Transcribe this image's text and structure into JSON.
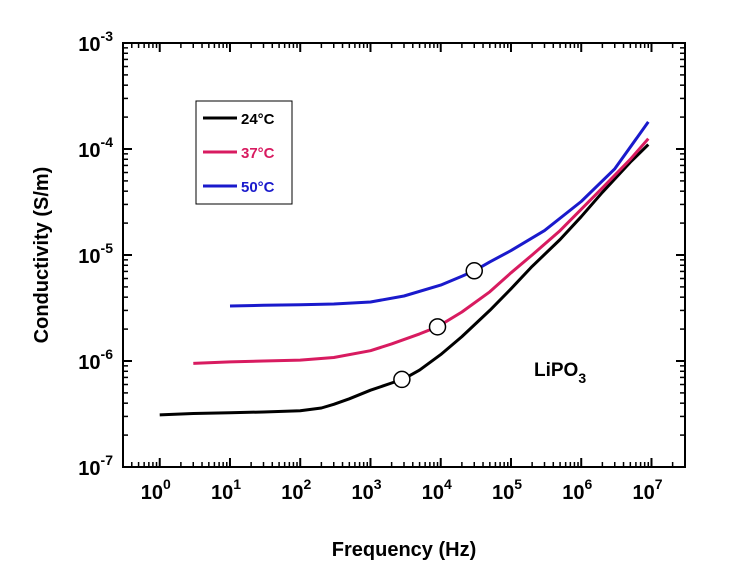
{
  "chart_data": {
    "type": "line",
    "title": "",
    "xlabel": "Frequency (Hz)",
    "ylabel": "Conductivity (S/m)",
    "xscale": "log",
    "yscale": "log",
    "xlim": [
      0.3,
      30000000
    ],
    "ylim": [
      1e-07,
      0.001
    ],
    "x_ticks": [
      {
        "base": "10",
        "exp": "0",
        "value": 1
      },
      {
        "base": "10",
        "exp": "1",
        "value": 10
      },
      {
        "base": "10",
        "exp": "2",
        "value": 100
      },
      {
        "base": "10",
        "exp": "3",
        "value": 1000
      },
      {
        "base": "10",
        "exp": "4",
        "value": 10000
      },
      {
        "base": "10",
        "exp": "5",
        "value": 100000
      },
      {
        "base": "10",
        "exp": "6",
        "value": 1000000
      },
      {
        "base": "10",
        "exp": "7",
        "value": 10000000
      }
    ],
    "y_ticks": [
      {
        "base": "10",
        "exp": "-7",
        "value": 1e-07
      },
      {
        "base": "10",
        "exp": "-6",
        "value": 1e-06
      },
      {
        "base": "10",
        "exp": "-5",
        "value": 1e-05
      },
      {
        "base": "10",
        "exp": "-4",
        "value": 0.0001
      },
      {
        "base": "10",
        "exp": "-3",
        "value": 0.001
      }
    ],
    "grid": false,
    "legend_position": "top-left",
    "annotation": {
      "main": "LiPO",
      "subscript": "3"
    },
    "series": [
      {
        "name": "24°C",
        "color": "#000000",
        "x": [
          1,
          3,
          10,
          30,
          100,
          200,
          300,
          500,
          1000,
          2000,
          3000,
          5000,
          10000,
          20000,
          50000,
          100000,
          200000,
          500000,
          1000000,
          2000000,
          5000000,
          9000000
        ],
        "y": [
          3.1e-07,
          3.2e-07,
          3.25e-07,
          3.3e-07,
          3.4e-07,
          3.6e-07,
          3.9e-07,
          4.4e-07,
          5.3e-07,
          6.2e-07,
          6.8e-07,
          8.2e-07,
          1.15e-06,
          1.7e-06,
          3e-06,
          4.8e-06,
          7.8e-06,
          1.4e-05,
          2.3e-05,
          3.9e-05,
          7.5e-05,
          0.00011
        ]
      },
      {
        "name": "37°C",
        "color": "#d81b60",
        "x": [
          3,
          10,
          30,
          100,
          300,
          1000,
          2000,
          5000,
          9000,
          20000,
          50000,
          100000,
          200000,
          500000,
          1000000,
          2000000,
          5000000,
          9000000
        ],
        "y": [
          9.5e-07,
          9.8e-07,
          1e-06,
          1.02e-06,
          1.08e-06,
          1.25e-06,
          1.45e-06,
          1.8e-06,
          2.1e-06,
          2.9e-06,
          4.5e-06,
          6.8e-06,
          1e-05,
          1.7e-05,
          2.7e-05,
          4.3e-05,
          8e-05,
          0.000125
        ]
      },
      {
        "name": "50°C",
        "color": "#1a1acc",
        "x": [
          10,
          30,
          100,
          300,
          1000,
          3000,
          10000,
          20000,
          30000,
          50000,
          100000,
          300000,
          1000000,
          3000000,
          9000000
        ],
        "y": [
          3.3e-06,
          3.35e-06,
          3.4e-06,
          3.45e-06,
          3.6e-06,
          4.1e-06,
          5.2e-06,
          6.3e-06,
          7.1e-06,
          8.6e-06,
          1.1e-05,
          1.7e-05,
          3.2e-05,
          6.5e-05,
          0.00018
        ]
      }
    ],
    "markers": [
      {
        "series": "24°C",
        "x": 2800,
        "y": 6.7e-07
      },
      {
        "series": "37°C",
        "x": 9000,
        "y": 2.1e-06
      },
      {
        "series": "50°C",
        "x": 30000,
        "y": 7.1e-06
      }
    ]
  }
}
